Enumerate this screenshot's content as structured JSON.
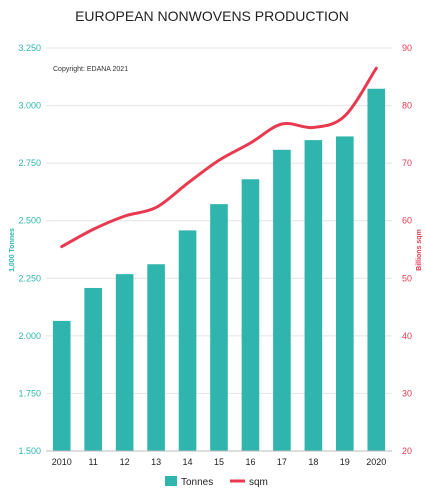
{
  "chart_data": {
    "type": "bar",
    "title": "EUROPEAN NONWOVENS PRODUCTION",
    "annotation": "Copyright: EDANA 2021",
    "categories": [
      "2010",
      "11",
      "12",
      "13",
      "14",
      "15",
      "16",
      "17",
      "18",
      "19",
      "2020"
    ],
    "ylabel": "1,000 Tonnes",
    "y2label": "Billions sqm",
    "ylim": [
      1500,
      3250
    ],
    "y2lim": [
      20,
      90
    ],
    "yticks": [
      "1.500",
      "1.750",
      "2.000",
      "2.250",
      "2.500",
      "2.750",
      "3.000",
      "3.250"
    ],
    "y2ticks": [
      "20",
      "30",
      "40",
      "50",
      "60",
      "70",
      "80",
      "90"
    ],
    "grid": true,
    "legend_position": "bottom",
    "series": [
      {
        "name": "Tonnes",
        "type": "bar",
        "axis": "left",
        "color": "#2fb5ad",
        "values": [
          2065,
          2208,
          2268,
          2311,
          2458,
          2572,
          2680,
          2808,
          2850,
          2866,
          3073
        ]
      },
      {
        "name": "sqm",
        "type": "line",
        "axis": "right",
        "color": "#e8394f",
        "values": [
          55.5,
          58.5,
          60.8,
          62.3,
          66.5,
          70.5,
          73.5,
          76.8,
          76.2,
          78.2,
          86.5
        ]
      }
    ]
  }
}
